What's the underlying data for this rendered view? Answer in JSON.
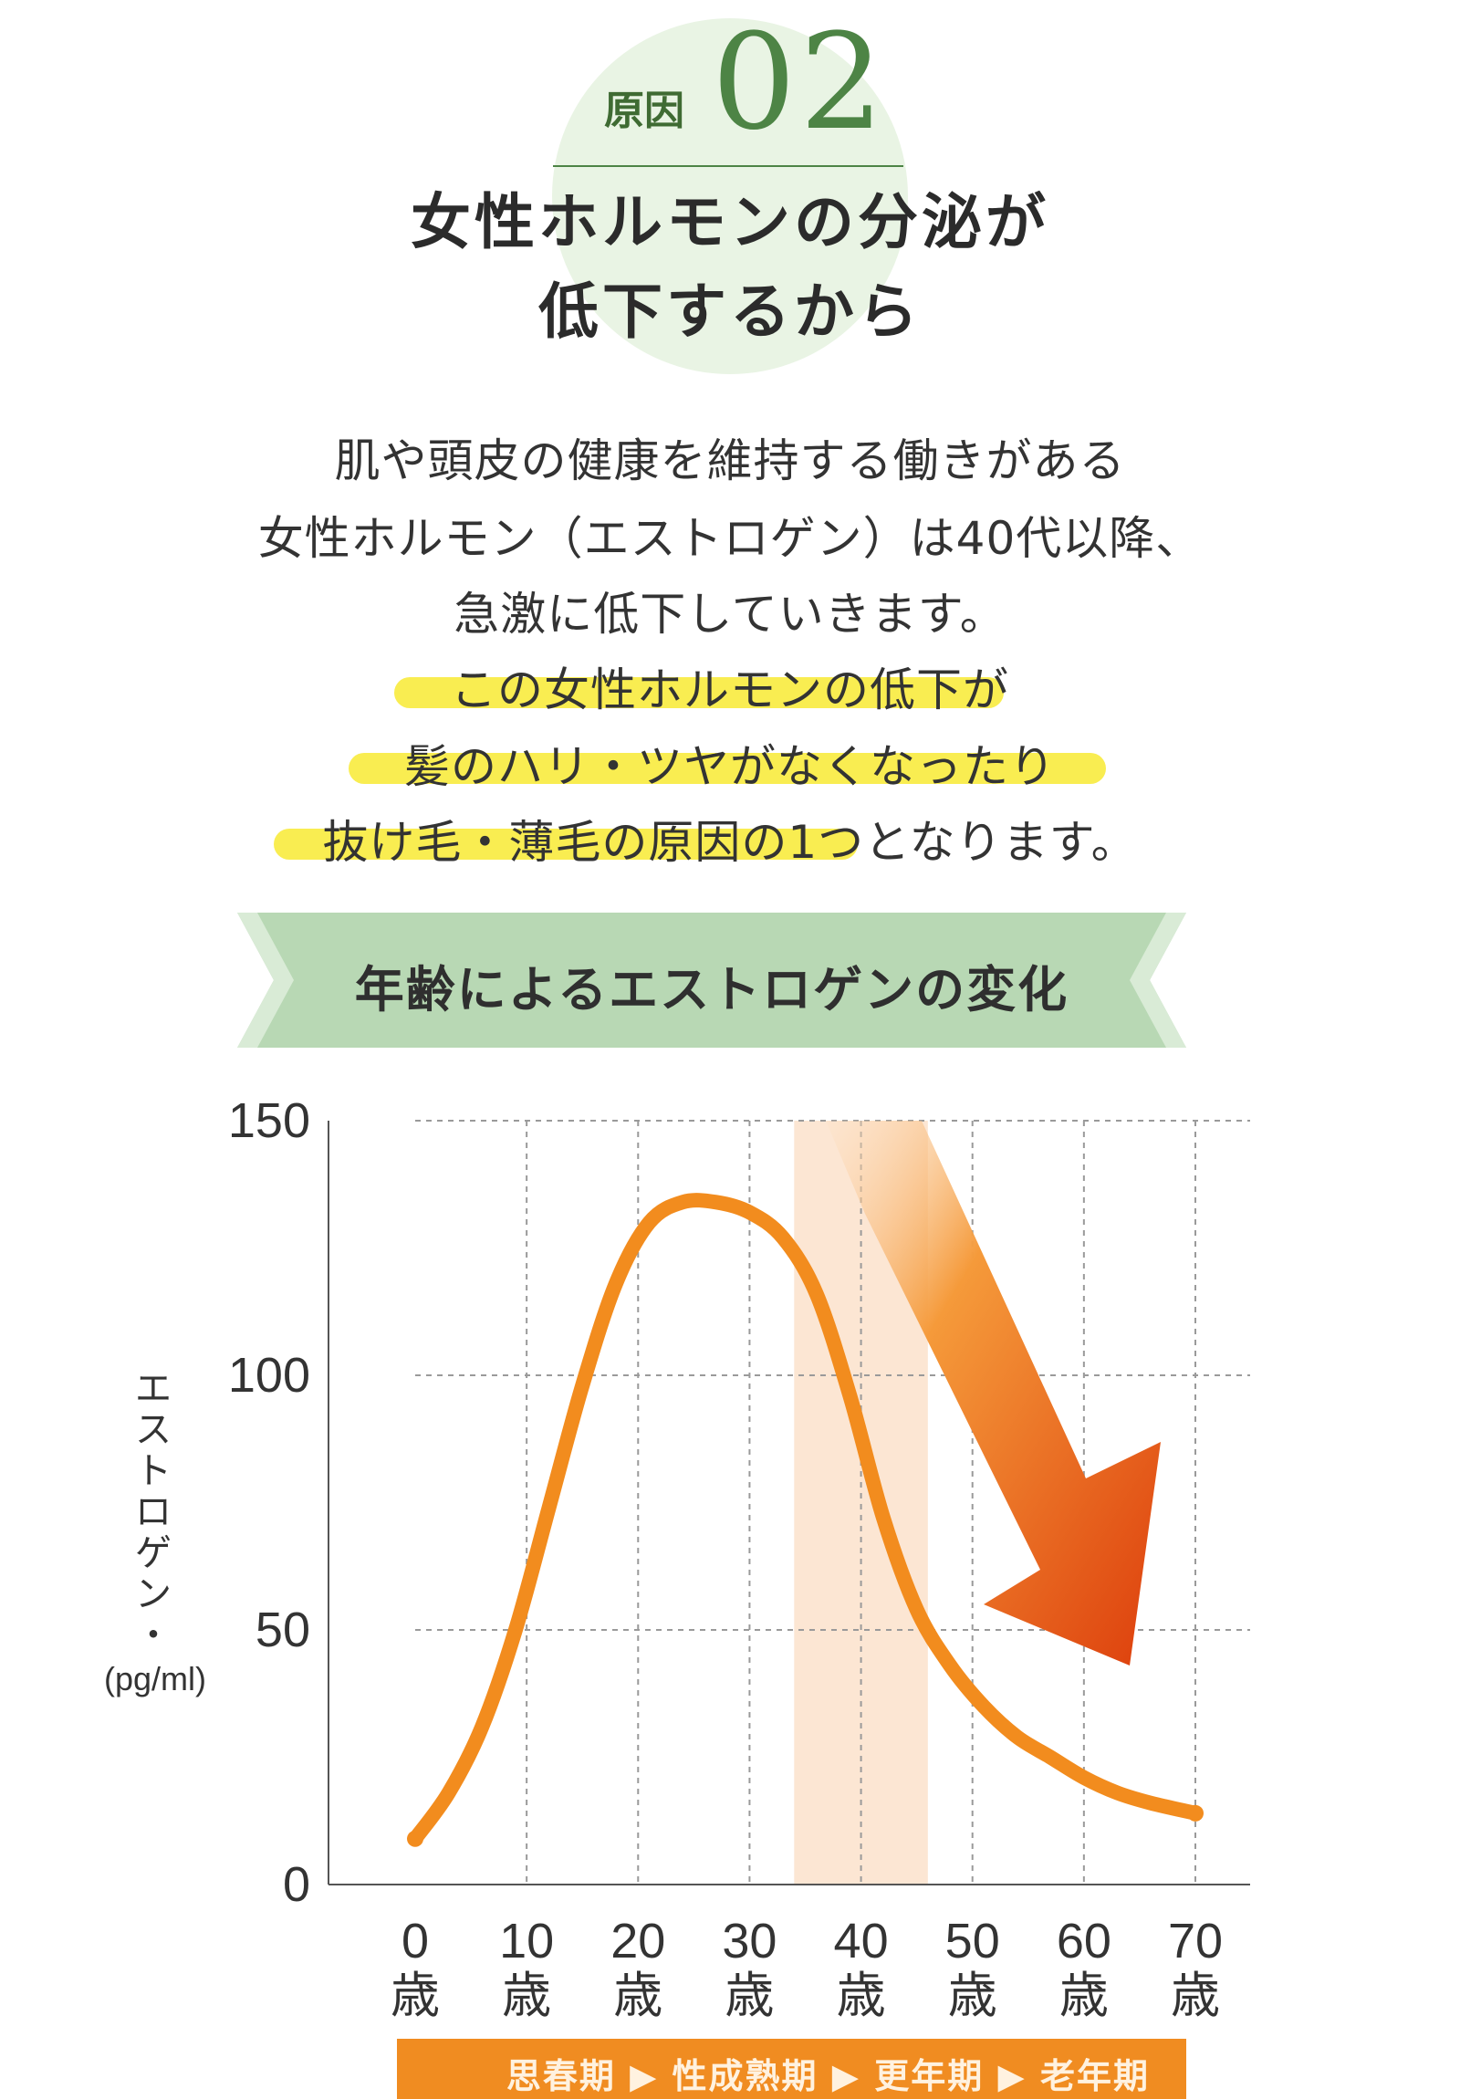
{
  "header": {
    "reason_label": "原因",
    "reason_number": "02",
    "headline_line1": "女性ホルモンの分泌が",
    "headline_line2": "低下するから"
  },
  "body": {
    "line1": "肌や頭皮の健康を維持する働きがある",
    "line2": "女性ホルモン（エストロゲン）は40代以降、",
    "line3": "急激に低下していきます。",
    "line4": "この女性ホルモンの低下が",
    "line5": "髪のハリ・ツヤがなくなったり",
    "line6": "抜け毛・薄毛の原因の1つとなります。"
  },
  "colors": {
    "accent_green": "#4d8445",
    "banner_green": "#b8d8b4",
    "highlight": "#f8ea33",
    "curve_orange": "#f28c1e",
    "arrow_dark": "#dd3e0c",
    "band": "#fbe2cb"
  },
  "chart_data": {
    "type": "line",
    "title": "年齢によるエストロゲンの変化",
    "ylabel": "エストロゲン・(pg/ml)",
    "ylabel_chars": [
      "エ",
      "ス",
      "ト",
      "ロ",
      "ゲ",
      "ン",
      "・"
    ],
    "ylabel_unit": "(pg/ml)",
    "ylim": [
      0,
      150
    ],
    "xlim": [
      0,
      70
    ],
    "yticks": [
      0,
      50,
      100,
      150
    ],
    "xtick_values": [
      0,
      10,
      20,
      30,
      40,
      50,
      60,
      70
    ],
    "xtick_numbers": [
      "0",
      "10",
      "20",
      "30",
      "40",
      "50",
      "60",
      "70"
    ],
    "xtick_unit": "歳",
    "grid": true,
    "series": [
      {
        "x": [
          0,
          3,
          6,
          9,
          12,
          15,
          18,
          21,
          24,
          27,
          30,
          33,
          36,
          39,
          42,
          45,
          48,
          51,
          54,
          57,
          60,
          63,
          66,
          70
        ],
        "y": [
          9,
          18,
          31,
          50,
          74,
          98,
          118,
          130,
          134,
          134,
          132,
          127,
          116,
          96,
          72,
          54,
          43,
          35,
          29,
          25,
          21,
          18,
          16,
          14
        ]
      }
    ],
    "band": {
      "from": 34,
      "to": 46
    },
    "phases": [
      "思春期",
      "性成熟期",
      "更年期",
      "老年期"
    ],
    "phase_separator": "▶"
  }
}
